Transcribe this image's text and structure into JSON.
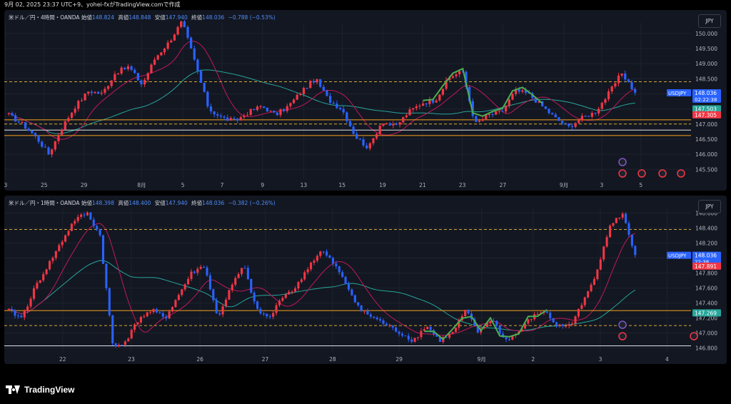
{
  "header": {
    "title": "9月 02, 2025 23:37 UTC+9、yohei-fxがTradingView.comで作成"
  },
  "brand": {
    "name": "TradingView"
  },
  "colors": {
    "bg": "#131722",
    "up": "#f23645",
    "down": "#2962ff",
    "grid": "#1e222d",
    "text": "#d1d4dc",
    "ma_fast": "#c2185b",
    "ma_slow": "#26a69a",
    "level_orange": "#f7a21b",
    "level_white": "#e0e3eb",
    "dashed_yellow": "#d6a82f",
    "zigzag": "#4caf50"
  },
  "chart_data": [
    {
      "type": "candlestick",
      "symbol_label": "米ドル／円・4時間・OANDA",
      "ohlc_labels": {
        "open_label": "始値",
        "open": "148.824",
        "high_label": "高値",
        "high": "148.848",
        "low_label": "安値",
        "low": "147.940",
        "close_label": "終値",
        "close": "148.036",
        "change": "−0.788 (−0.53%)"
      },
      "currency_button": "JPY",
      "y_ticks": [
        "150.000",
        "149.500",
        "149.000",
        "148.500",
        "148.000",
        "147.500",
        "147.000",
        "146.500",
        "146.000",
        "145.500"
      ],
      "ylim": [
        145.2,
        150.35
      ],
      "x_ticks": [
        "3",
        "25",
        "29",
        "8月",
        "5",
        "7",
        "9",
        "13",
        "15",
        "19",
        "21",
        "23",
        "27",
        "9月",
        "3",
        "5"
      ],
      "price_badges": [
        {
          "label": "USDJPY",
          "value": "148.036",
          "sub": "02:22:38",
          "color": "#2962ff"
        },
        {
          "value": "147.503",
          "color": "#26a69a"
        },
        {
          "value": "147.305",
          "color": "#f23645"
        }
      ],
      "levels": [
        {
          "value": 148.4,
          "style": "dashed",
          "color": "#d6a82f"
        },
        {
          "value": 147.14,
          "style": "solid",
          "color": "#f7a21b"
        },
        {
          "value": 147.0,
          "style": "dashed",
          "color": "#d6a82f"
        },
        {
          "value": 146.8,
          "style": "solid",
          "color": "#e0e3eb"
        },
        {
          "value": 146.62,
          "style": "solid",
          "color": "#f7a21b"
        }
      ],
      "key_closes": [
        147.3,
        147.0,
        146.6,
        146.0,
        146.9,
        147.6,
        148.1,
        148.0,
        148.7,
        148.9,
        148.3,
        149.2,
        149.7,
        150.4,
        149.0,
        147.5,
        147.2,
        147.1,
        147.4,
        147.6,
        147.3,
        147.6,
        148.1,
        148.5,
        147.8,
        147.5,
        146.6,
        146.2,
        147.1,
        146.9,
        147.4,
        147.7,
        147.8,
        148.5,
        148.8,
        147.0,
        147.3,
        147.4,
        148.1,
        148.0,
        147.6,
        147.2,
        146.9,
        147.2,
        147.4,
        148.0,
        148.7,
        148.04
      ]
    },
    {
      "type": "candlestick",
      "symbol_label": "米ドル／円・1時間・OANDA",
      "ohlc_labels": {
        "open_label": "始値",
        "open": "148.398",
        "high_label": "高値",
        "high": "148.400",
        "low_label": "安値",
        "low": "147.940",
        "close_label": "終値",
        "close": "148.036",
        "change": "−0.382 (−0.26%)"
      },
      "currency_button": "JPY",
      "y_ticks": [
        "148.600",
        "148.400",
        "148.200",
        "148.000",
        "147.800",
        "147.600",
        "147.400",
        "147.200",
        "147.000",
        "146.800"
      ],
      "ylim": [
        146.74,
        148.66
      ],
      "x_ticks": [
        "22",
        "23",
        "26",
        "27",
        "28",
        "29",
        "9月",
        "2",
        "3",
        "4"
      ],
      "price_badges": [
        {
          "label": "USDJPY",
          "value": "148.036",
          "sub": "22:38",
          "color": "#2962ff"
        },
        {
          "value": "147.891",
          "color": "#f23645"
        },
        {
          "value": "147.269",
          "color": "#26a69a"
        }
      ],
      "levels": [
        {
          "value": 148.38,
          "style": "dashed",
          "color": "#d6a82f"
        },
        {
          "value": 147.3,
          "style": "solid",
          "color": "#f7a21b"
        },
        {
          "value": 147.1,
          "style": "dashed",
          "color": "#d6a82f"
        },
        {
          "value": 146.83,
          "style": "solid",
          "color": "#e0e3eb"
        }
      ],
      "key_closes": [
        147.3,
        147.2,
        147.6,
        147.9,
        148.2,
        148.5,
        148.6,
        148.3,
        146.8,
        146.9,
        147.2,
        147.3,
        147.2,
        147.5,
        147.8,
        147.9,
        147.2,
        147.6,
        147.9,
        147.3,
        147.2,
        147.5,
        147.6,
        147.9,
        148.1,
        147.9,
        147.6,
        147.3,
        147.2,
        147.1,
        147.0,
        146.9,
        147.1,
        146.9,
        147.0,
        147.3,
        147.0,
        147.2,
        146.9,
        147.0,
        147.2,
        147.3,
        147.1,
        147.1,
        147.4,
        147.8,
        148.4,
        148.6,
        148.04
      ]
    }
  ]
}
